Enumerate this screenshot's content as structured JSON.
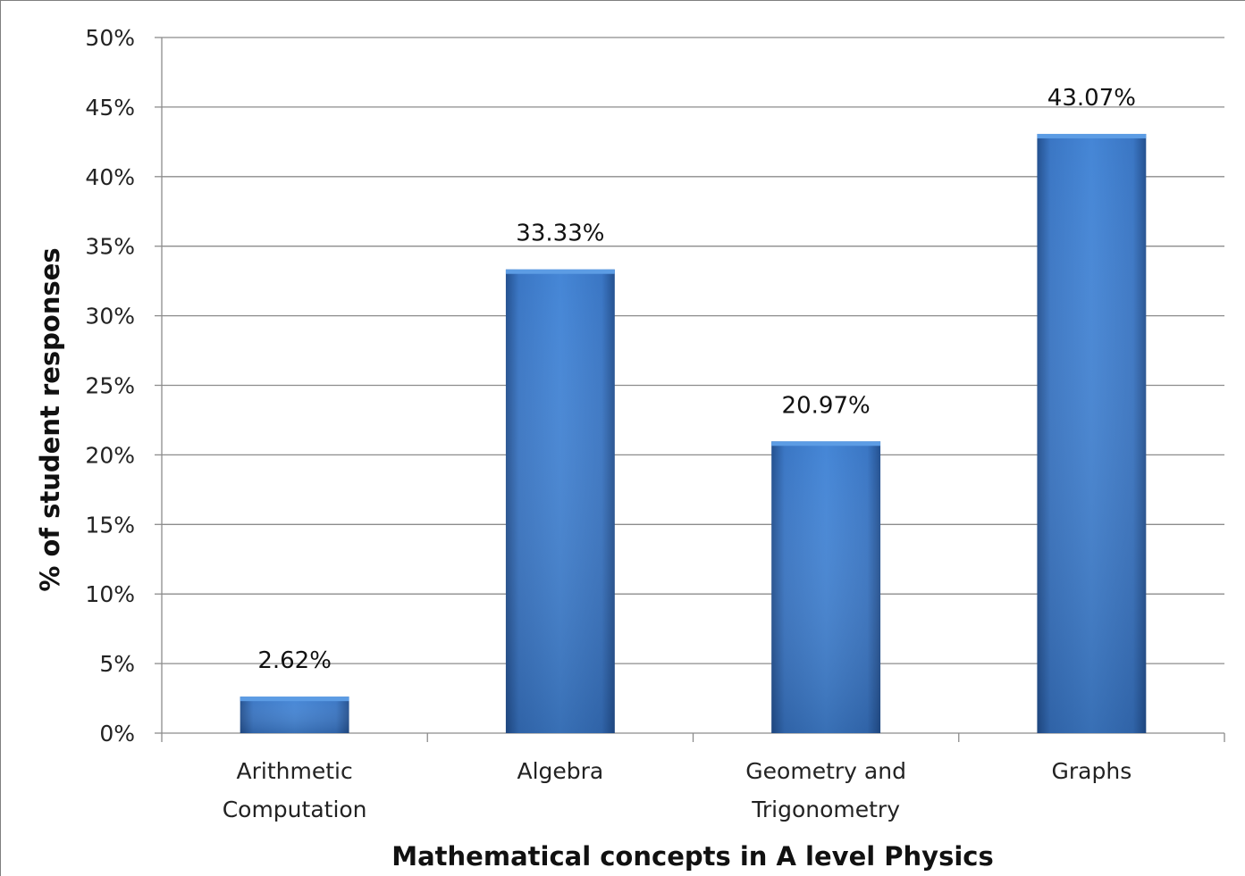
{
  "chart_data": {
    "type": "bar",
    "title": "",
    "xlabel": "Mathematical concepts in A level Physics",
    "ylabel": "% of student responses",
    "categories": [
      [
        "Arithmetic",
        "Computation"
      ],
      [
        "Algebra"
      ],
      [
        "Geometry and",
        "Trigonometry"
      ],
      [
        "Graphs"
      ]
    ],
    "values": [
      2.62,
      33.33,
      20.97,
      43.07
    ],
    "data_labels": [
      "2.62%",
      "33.33%",
      "20.97%",
      "43.07%"
    ],
    "ylim": [
      0,
      50
    ],
    "yticks": [
      0,
      5,
      10,
      15,
      20,
      25,
      30,
      35,
      40,
      45,
      50
    ],
    "ytick_labels": [
      "0%",
      "5%",
      "10%",
      "15%",
      "20%",
      "25%",
      "30%",
      "35%",
      "40%",
      "45%",
      "50%"
    ],
    "grid": true,
    "legend": "none",
    "bar_color": "#3a78c8"
  }
}
